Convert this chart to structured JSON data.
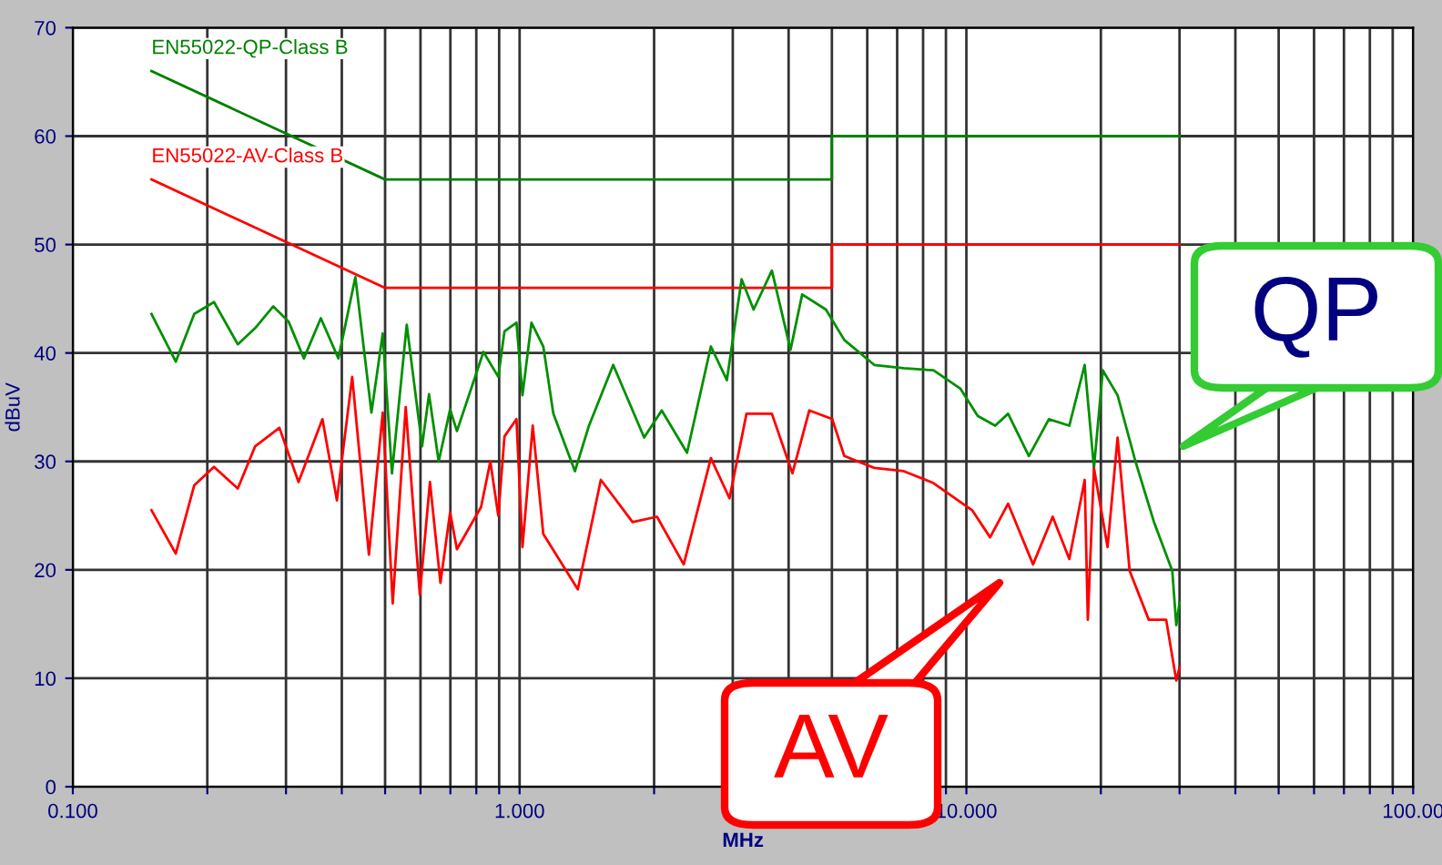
{
  "chart_data": {
    "type": "line",
    "xlabel": "MHz",
    "ylabel": "dBuV",
    "log": "x",
    "xlim": [
      0.1,
      100
    ],
    "ylim": [
      0,
      70
    ],
    "xticks": [
      {
        "value": 0.1,
        "label": "0.100"
      },
      {
        "value": 0.2,
        "label": null
      },
      {
        "value": 0.3,
        "label": null
      },
      {
        "value": 0.4,
        "label": null
      },
      {
        "value": 0.5,
        "label": null
      },
      {
        "value": 0.6,
        "label": null
      },
      {
        "value": 0.7,
        "label": null
      },
      {
        "value": 0.8,
        "label": null
      },
      {
        "value": 0.9,
        "label": null
      },
      {
        "value": 1,
        "label": "1.000"
      },
      {
        "value": 2,
        "label": null
      },
      {
        "value": 3,
        "label": null
      },
      {
        "value": 4,
        "label": null
      },
      {
        "value": 5,
        "label": null
      },
      {
        "value": 6,
        "label": null
      },
      {
        "value": 7,
        "label": null
      },
      {
        "value": 8,
        "label": null
      },
      {
        "value": 9,
        "label": null
      },
      {
        "value": 10,
        "label": "10.000"
      },
      {
        "value": 20,
        "label": null
      },
      {
        "value": 30,
        "label": null
      },
      {
        "value": 40,
        "label": null
      },
      {
        "value": 50,
        "label": null
      },
      {
        "value": 60,
        "label": null
      },
      {
        "value": 70,
        "label": null
      },
      {
        "value": 80,
        "label": null
      },
      {
        "value": 90,
        "label": null
      },
      {
        "value": 100,
        "label": "100.00"
      }
    ],
    "yticks": [
      0,
      10,
      20,
      30,
      40,
      50,
      60,
      70
    ],
    "grid": true,
    "legend": false,
    "marker": "none",
    "line_style": "solid",
    "series": [
      {
        "name": "EN55022-QP-Class B",
        "color": "#008000",
        "x": [
          0.15,
          0.5,
          5,
          5,
          30
        ],
        "values": [
          66,
          56,
          56,
          60,
          60
        ]
      },
      {
        "name": "EN55022-AV-Class B",
        "color": "#ff0000",
        "x": [
          0.15,
          0.5,
          5,
          5,
          30
        ],
        "values": [
          56,
          46,
          46,
          50,
          50
        ]
      },
      {
        "color": "#009000",
        "x": [
          0.15,
          0.17,
          0.187,
          0.207,
          0.234,
          0.256,
          0.281,
          0.304,
          0.329,
          0.359,
          0.393,
          0.429,
          0.466,
          0.494,
          0.518,
          0.559,
          0.605,
          0.627,
          0.659,
          0.699,
          0.724,
          0.83,
          0.896,
          0.925,
          0.984,
          1.015,
          1.063,
          1.13,
          1.19,
          1.33,
          1.43,
          1.62,
          1.9,
          2.08,
          2.37,
          2.68,
          2.91,
          3.14,
          3.34,
          3.67,
          4.04,
          4.29,
          4.85,
          5.33,
          6.22,
          7.24,
          8.44,
          9.7,
          10.6,
          11.6,
          12.4,
          13.8,
          15.3,
          17.0,
          18.4,
          19.3,
          20.2,
          21.8,
          23.9,
          26.3,
          28.9,
          29.5,
          30
        ],
        "values": [
          43.6,
          39.2,
          43.6,
          44.7,
          40.8,
          42.3,
          44.3,
          42.9,
          39.5,
          43.2,
          39.5,
          47.0,
          34.5,
          41.8,
          28.9,
          42.6,
          31.4,
          36.2,
          30.0,
          34.8,
          32.8,
          40.1,
          37.8,
          42.0,
          42.8,
          36.1,
          42.8,
          40.6,
          34.4,
          29.1,
          33.3,
          38.9,
          32.2,
          34.7,
          30.8,
          40.6,
          37.5,
          46.8,
          44.0,
          47.6,
          40.3,
          45.4,
          44.0,
          41.2,
          38.9,
          38.6,
          38.4,
          36.7,
          34.2,
          33.3,
          34.4,
          30.5,
          33.9,
          33.3,
          38.9,
          29.4,
          38.4,
          36.1,
          30.0,
          24.4,
          19.9,
          14.9,
          17
        ]
      },
      {
        "color": "#ff0000",
        "x": [
          0.15,
          0.17,
          0.187,
          0.207,
          0.234,
          0.256,
          0.29,
          0.32,
          0.362,
          0.39,
          0.422,
          0.46,
          0.494,
          0.52,
          0.556,
          0.598,
          0.63,
          0.665,
          0.699,
          0.724,
          0.82,
          0.86,
          0.896,
          0.925,
          0.984,
          1.015,
          1.07,
          1.13,
          1.35,
          1.52,
          1.79,
          2.03,
          2.33,
          2.68,
          2.95,
          3.22,
          3.67,
          4.08,
          4.45,
          5.01,
          5.33,
          6.22,
          7.24,
          8.44,
          10.3,
          11.3,
          12.4,
          14.1,
          15.6,
          17.0,
          18.4,
          18.7,
          19.3,
          20.7,
          21.8,
          23.2,
          25.6,
          28.0,
          29.5,
          30
        ],
        "values": [
          25.5,
          21.5,
          27.8,
          29.5,
          27.5,
          31.4,
          33.1,
          28.1,
          33.9,
          26.4,
          37.8,
          21.4,
          34.5,
          16.9,
          35.0,
          17.7,
          28.1,
          18.8,
          25.3,
          21.9,
          25.8,
          30.0,
          25.0,
          32.3,
          33.9,
          22.1,
          33.3,
          23.3,
          18.2,
          28.3,
          24.4,
          24.9,
          20.5,
          30.3,
          26.6,
          34.4,
          34.4,
          28.9,
          34.7,
          33.9,
          30.5,
          29.4,
          29.1,
          28.0,
          25.5,
          23.0,
          26.1,
          20.5,
          24.9,
          21.0,
          28.3,
          15.4,
          29.4,
          22.1,
          32.2,
          19.9,
          15.4,
          15.4,
          9.8,
          11
        ]
      }
    ],
    "annotations": [
      "QP",
      "AV"
    ]
  }
}
